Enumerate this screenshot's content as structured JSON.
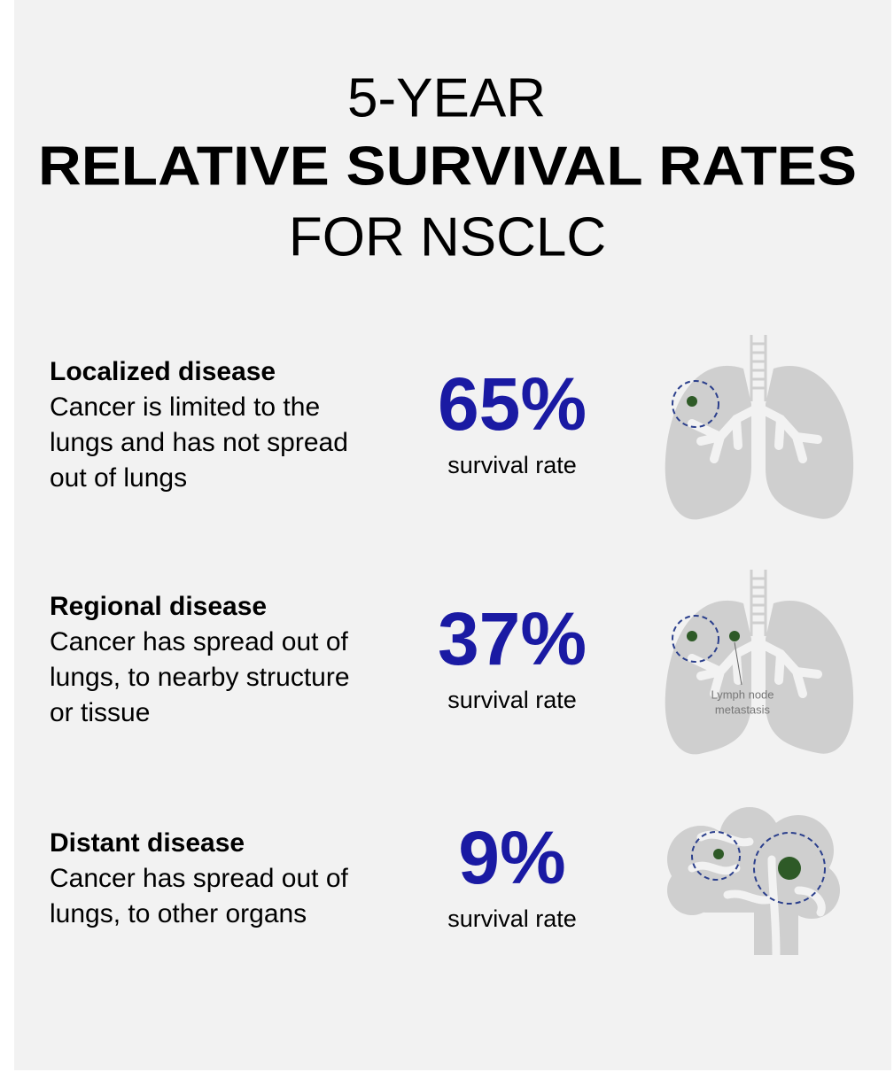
{
  "title": {
    "line1": "5-YEAR",
    "line2": "RELATIVE SURVIVAL RATES",
    "line3": "FOR NSCLC"
  },
  "stages": [
    {
      "heading": "Localized disease",
      "description": [
        "Cancer is limited to the",
        "lungs and has not spread",
        "out of lungs"
      ],
      "rate": "65%",
      "rate_caption": "survival rate"
    },
    {
      "heading": "Regional disease",
      "description": [
        "Cancer has spread out of",
        "lungs, to nearby structure",
        "or tissue"
      ],
      "rate": "37%",
      "rate_caption": "survival rate",
      "illustration_label": [
        "Lymph node",
        "metastasis"
      ]
    },
    {
      "heading": "Distant disease",
      "description": [
        "Cancer has spread out of",
        "lungs, to other organs"
      ],
      "rate": "9%",
      "rate_caption": "survival rate"
    }
  ]
}
